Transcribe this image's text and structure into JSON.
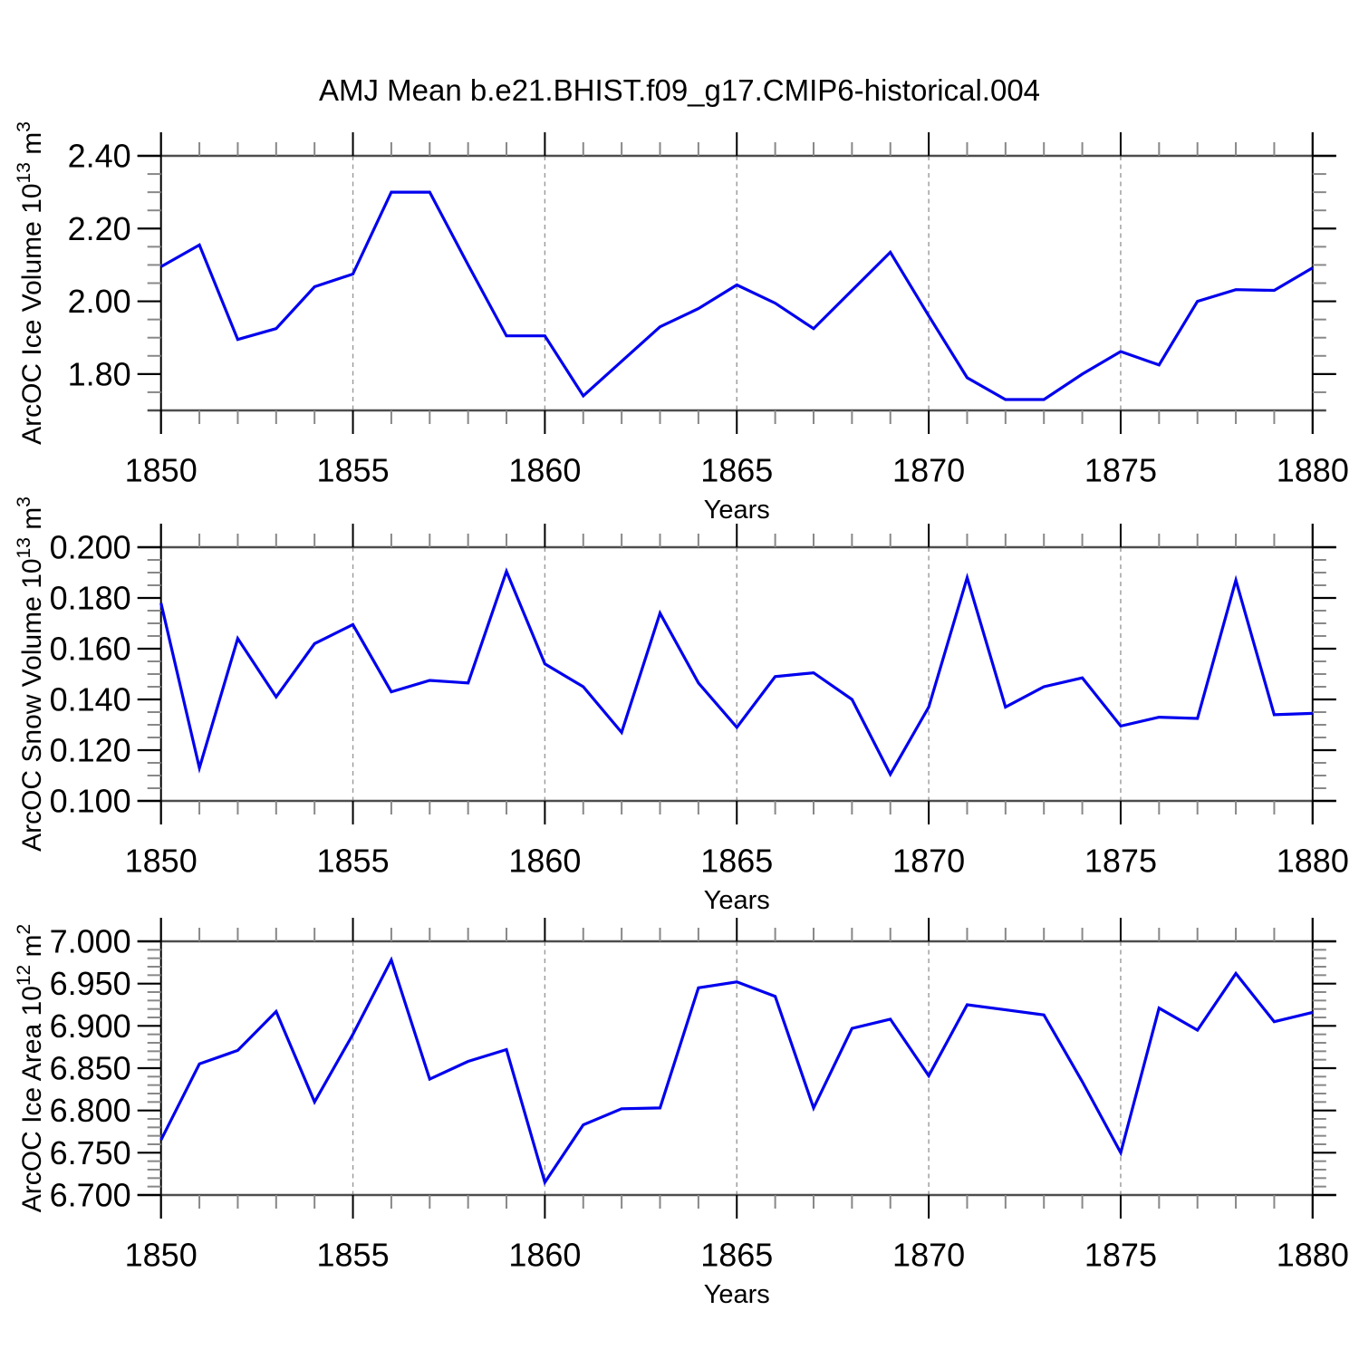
{
  "title": "AMJ Mean b.e21.BHIST.f09_g17.CMIP6-historical.004",
  "colors": {
    "line": "#0000ee",
    "grid": "#999999",
    "axis": "#000000",
    "frame": "#4d4d4d",
    "minor_tick": "#888888",
    "text": "#000000",
    "background": "#ffffff"
  },
  "x_axis": {
    "label": "Years",
    "min": 1850,
    "max": 1880,
    "major_ticks": [
      1850,
      1855,
      1860,
      1865,
      1870,
      1875,
      1880
    ],
    "major_tick_labels": [
      "1850",
      "1855",
      "1860",
      "1865",
      "1870",
      "1875",
      "1880"
    ],
    "minor_step": 1,
    "grid_years": [
      1855,
      1860,
      1865,
      1870,
      1875
    ]
  },
  "chart_data": [
    {
      "type": "line",
      "name": "ice-volume",
      "ylabel_parts": [
        {
          "t": "ArcOC Ice Volume 10",
          "sup": false
        },
        {
          "t": "13",
          "sup": true
        },
        {
          "t": " m",
          "sup": false
        },
        {
          "t": "3",
          "sup": true
        }
      ],
      "xlabel": "Years",
      "ylim": [
        1.7,
        2.4
      ],
      "ytick_values": [
        1.8,
        2.0,
        2.2,
        2.4
      ],
      "ytick_labels": [
        "1.80",
        "2.00",
        "2.20",
        "2.40"
      ],
      "y_minor_step": 0.05,
      "x": [
        1850,
        1851,
        1852,
        1853,
        1854,
        1855,
        1856,
        1857,
        1858,
        1859,
        1860,
        1861,
        1862,
        1863,
        1864,
        1865,
        1866,
        1867,
        1868,
        1869,
        1870,
        1871,
        1872,
        1873,
        1874,
        1875,
        1876,
        1877,
        1878,
        1879,
        1880
      ],
      "values": [
        2.095,
        2.155,
        1.895,
        1.925,
        2.04,
        2.075,
        2.3,
        2.3,
        2.1,
        1.905,
        1.905,
        1.74,
        1.835,
        1.93,
        1.98,
        2.045,
        1.995,
        1.925,
        2.03,
        2.135,
        1.96,
        1.79,
        1.73,
        1.73,
        1.8,
        1.862,
        1.825,
        2.0,
        2.032,
        2.03,
        2.092
      ]
    },
    {
      "type": "line",
      "name": "snow-volume",
      "ylabel_parts": [
        {
          "t": "ArcOC Snow Volume 10",
          "sup": false
        },
        {
          "t": "13",
          "sup": true
        },
        {
          "t": " m",
          "sup": false
        },
        {
          "t": "3",
          "sup": true
        }
      ],
      "xlabel": "Years",
      "ylim": [
        0.1,
        0.2
      ],
      "ytick_values": [
        0.1,
        0.12,
        0.14,
        0.16,
        0.18,
        0.2
      ],
      "ytick_labels": [
        "0.100",
        "0.120",
        "0.140",
        "0.160",
        "0.180",
        "0.200"
      ],
      "y_minor_step": 0.005,
      "x": [
        1850,
        1851,
        1852,
        1853,
        1854,
        1855,
        1856,
        1857,
        1858,
        1859,
        1860,
        1861,
        1862,
        1863,
        1864,
        1865,
        1866,
        1867,
        1868,
        1869,
        1870,
        1871,
        1872,
        1873,
        1874,
        1875,
        1876,
        1877,
        1878,
        1879,
        1880
      ],
      "values": [
        0.178,
        0.113,
        0.164,
        0.141,
        0.162,
        0.1695,
        0.143,
        0.1475,
        0.1465,
        0.1905,
        0.154,
        0.145,
        0.127,
        0.174,
        0.1465,
        0.129,
        0.149,
        0.1505,
        0.14,
        0.1105,
        0.137,
        0.188,
        0.137,
        0.145,
        0.1485,
        0.1295,
        0.133,
        0.1325,
        0.187,
        0.134,
        0.1345
      ]
    },
    {
      "type": "line",
      "name": "ice-area",
      "ylabel_parts": [
        {
          "t": "ArcOC Ice Area 10",
          "sup": false
        },
        {
          "t": "12",
          "sup": true
        },
        {
          "t": " m",
          "sup": false
        },
        {
          "t": "2",
          "sup": true
        }
      ],
      "xlabel": "Years",
      "ylim": [
        6.7,
        7.0
      ],
      "ytick_values": [
        6.7,
        6.75,
        6.8,
        6.85,
        6.9,
        6.95,
        7.0
      ],
      "ytick_labels": [
        "6.700",
        "6.750",
        "6.800",
        "6.850",
        "6.900",
        "6.950",
        "7.000"
      ],
      "y_minor_step": 0.01,
      "x": [
        1850,
        1851,
        1852,
        1853,
        1854,
        1855,
        1856,
        1857,
        1858,
        1859,
        1860,
        1861,
        1862,
        1863,
        1864,
        1865,
        1866,
        1867,
        1868,
        1869,
        1870,
        1871,
        1872,
        1873,
        1874,
        1875,
        1876,
        1877,
        1878,
        1879,
        1880
      ],
      "values": [
        6.765,
        6.855,
        6.871,
        6.917,
        6.81,
        6.89,
        6.978,
        6.837,
        6.858,
        6.872,
        6.715,
        6.783,
        6.802,
        6.803,
        6.945,
        6.952,
        6.935,
        6.803,
        6.897,
        6.908,
        6.841,
        6.925,
        6.919,
        6.913,
        6.834,
        6.75,
        6.921,
        6.895,
        6.962,
        6.905,
        6.916
      ]
    }
  ]
}
